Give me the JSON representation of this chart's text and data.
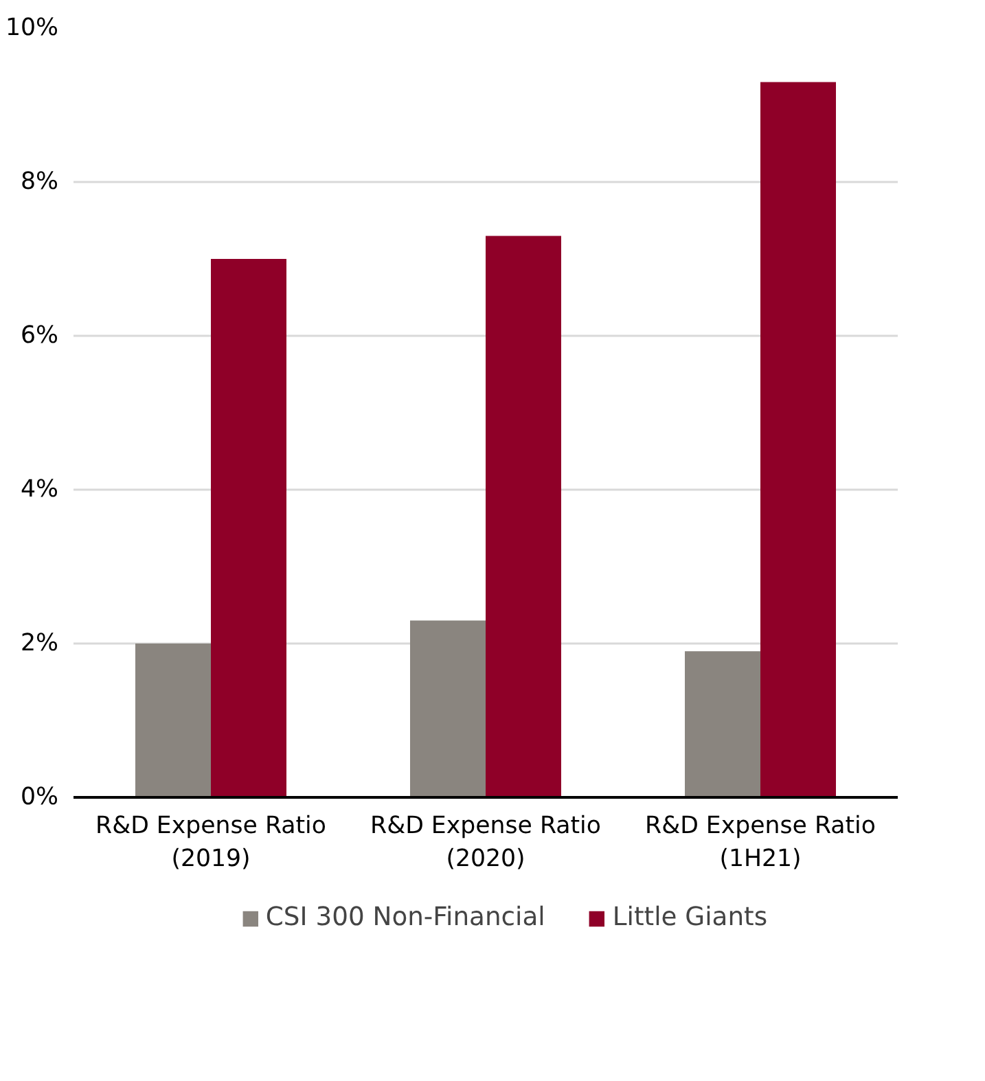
{
  "chart_data": {
    "type": "bar",
    "categories": [
      "R&D Expense Ratio (2019)",
      "R&D Expense Ratio (2020)",
      "R&D Expense Ratio (1H21)"
    ],
    "series": [
      {
        "name": "CSI 300 Non-Financial",
        "color": "#8a857f",
        "values": [
          2.0,
          2.3,
          1.9
        ]
      },
      {
        "name": "Little Giants",
        "color": "#8f0028",
        "values": [
          7.0,
          7.3,
          9.3
        ]
      }
    ],
    "ylim": [
      0,
      10
    ],
    "yticks": [
      {
        "value": 0,
        "label": "0%"
      },
      {
        "value": 2,
        "label": "2%"
      },
      {
        "value": 4,
        "label": "4%"
      },
      {
        "value": 6,
        "label": "6%"
      },
      {
        "value": 8,
        "label": "8%"
      },
      {
        "value": 10,
        "label": "10%"
      }
    ],
    "grid": "y",
    "legend": "bottom"
  }
}
